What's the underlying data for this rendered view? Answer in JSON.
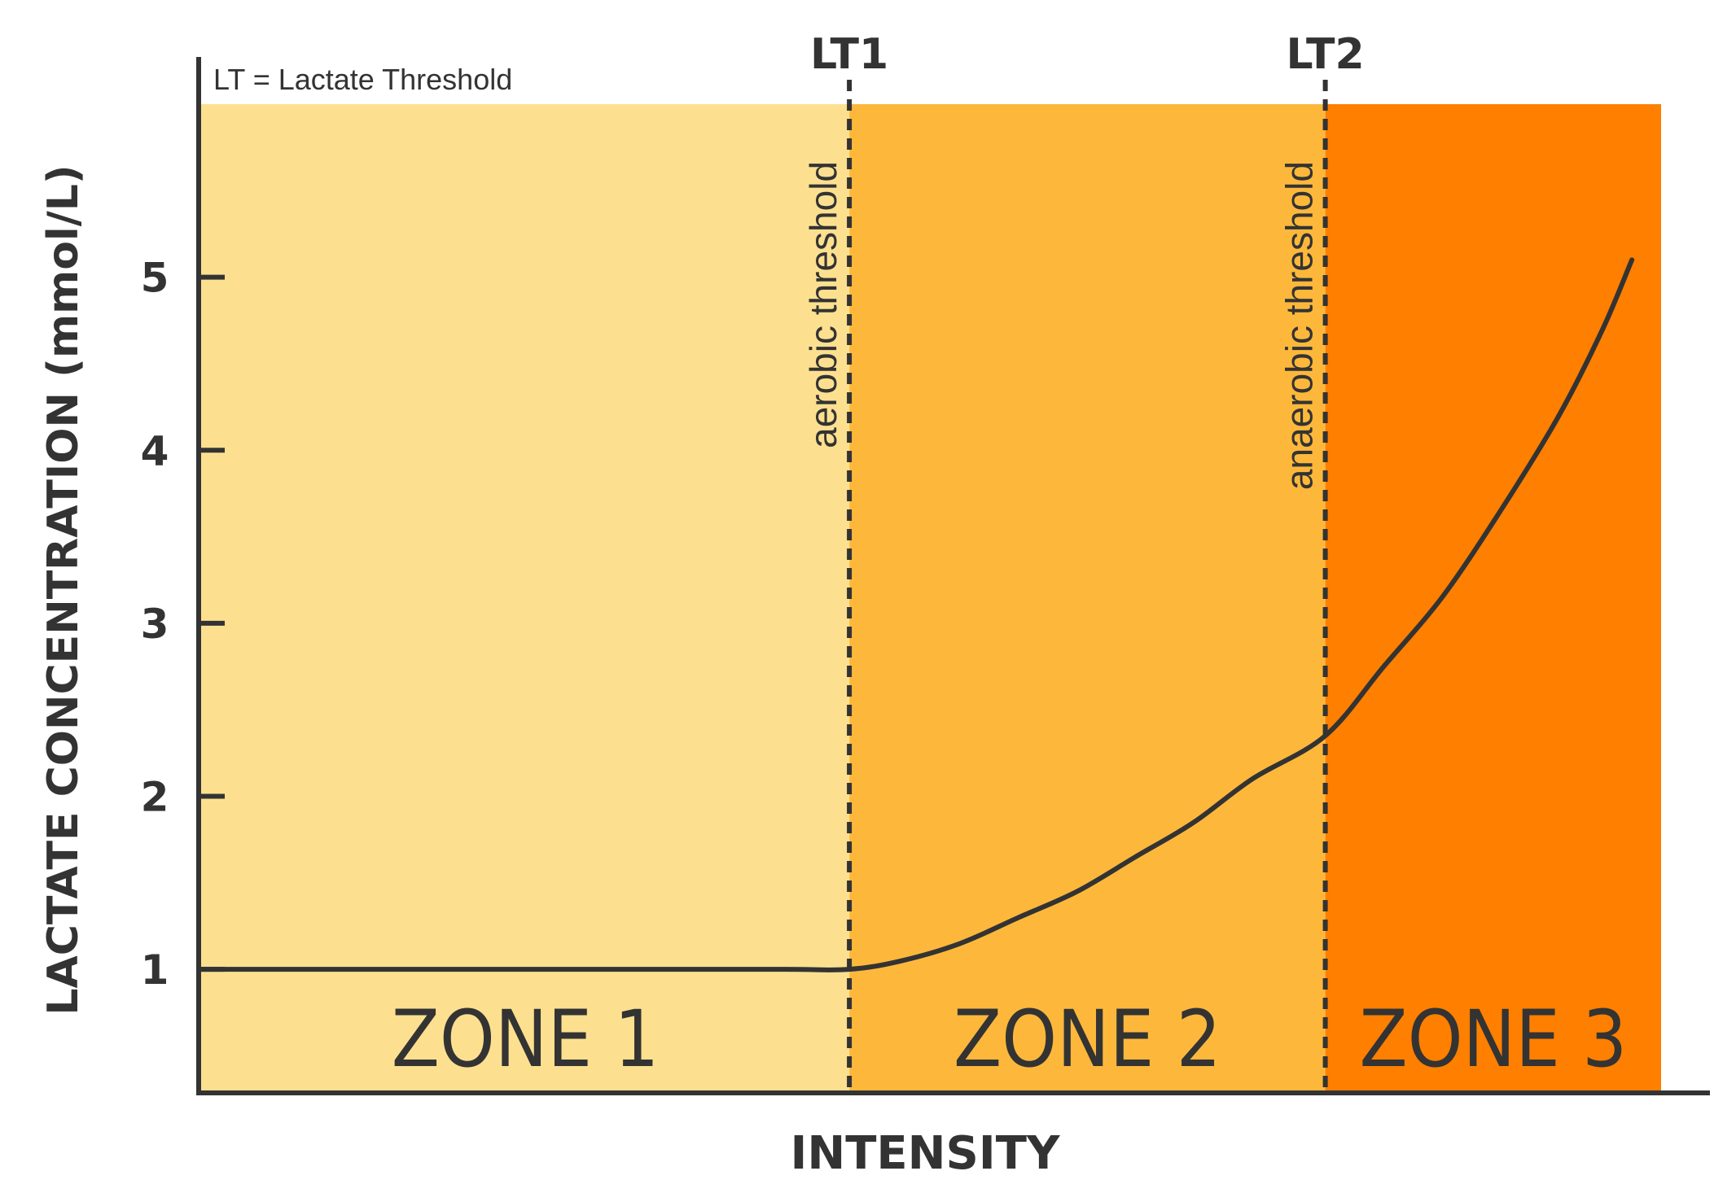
{
  "chart_data": {
    "type": "line",
    "title": "",
    "note": "LT = Lactate Threshold",
    "xlabel": "INTENSITY",
    "ylabel": "LACTATE CONCENTRATION (mmol/L)",
    "xlim": [
      0,
      100
    ],
    "ylim": [
      0.3,
      6.0
    ],
    "yticks": [
      1,
      2,
      3,
      4,
      5
    ],
    "ytick_labels": [
      "1",
      "2",
      "3",
      "4",
      "5"
    ],
    "grid": false,
    "zones": [
      {
        "label": "ZONE 1",
        "from": 0,
        "to": 44.4,
        "color": "#FDE08F"
      },
      {
        "label": "ZONE 2",
        "from": 44.4,
        "to": 77.0,
        "color": "#FDB83B"
      },
      {
        "label": "ZONE 3",
        "from": 77.0,
        "to": 100,
        "color": "#FF7F00"
      }
    ],
    "thresholds": [
      {
        "label": "LT1",
        "description": "aerobic threshold",
        "x": 44.4
      },
      {
        "label": "LT2",
        "description": "anaerobic threshold",
        "x": 77.0
      }
    ],
    "series": [
      {
        "name": "Lactate",
        "color": "#333333",
        "x": [
          0,
          10,
          20,
          30,
          40,
          44.4,
          48,
          52,
          56,
          60,
          64,
          68,
          72,
          77,
          81,
          85,
          89,
          93,
          96,
          98
        ],
        "y": [
          1.0,
          1.0,
          1.0,
          1.0,
          1.0,
          1.0,
          1.05,
          1.15,
          1.3,
          1.45,
          1.65,
          1.85,
          2.1,
          2.35,
          2.75,
          3.15,
          3.65,
          4.2,
          4.7,
          5.1
        ]
      }
    ]
  }
}
